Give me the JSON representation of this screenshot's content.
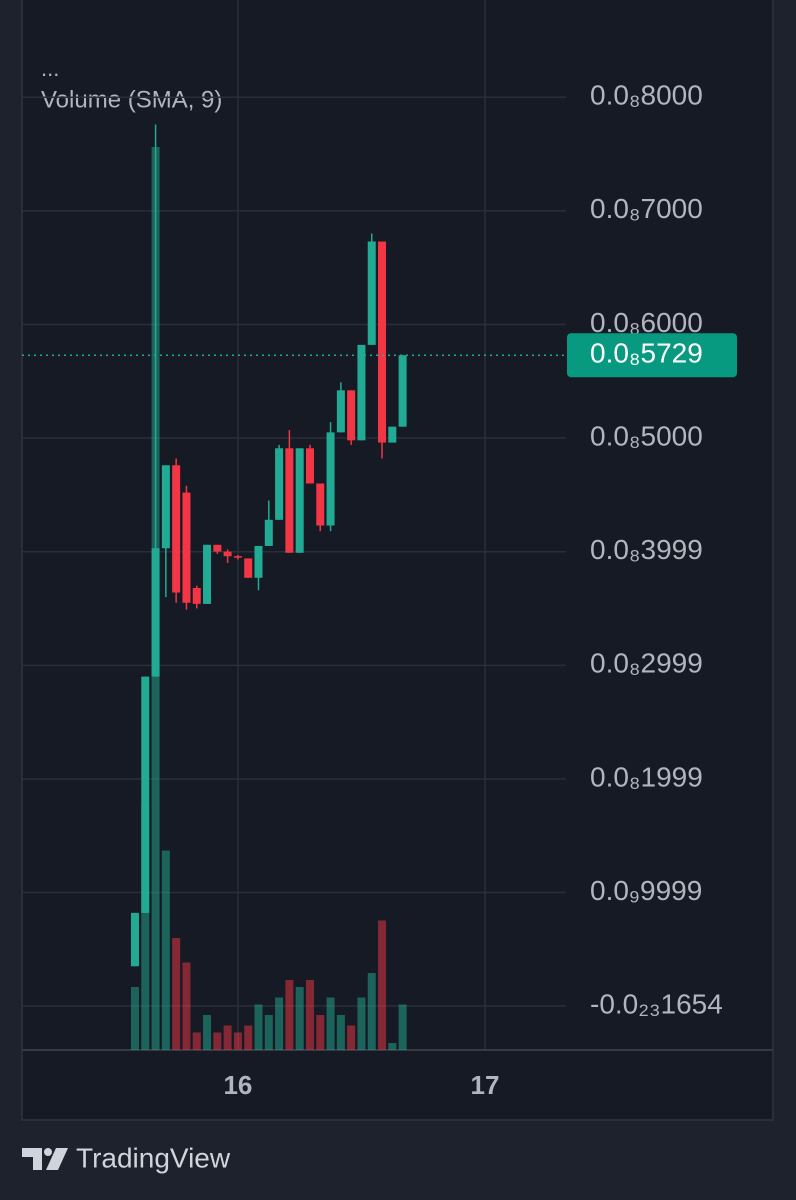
{
  "chart_data": {
    "type": "candlestick",
    "menu": "...",
    "indicator_label": "Volume (SMA, 9)",
    "brand": "TradingView",
    "up_color": "#22ab94",
    "down_color": "#f23645",
    "grid": true,
    "x": [
      15.5833,
      15.625,
      15.6667,
      15.7083,
      15.75,
      15.7917,
      15.8333,
      15.875,
      15.9167,
      15.9583,
      16,
      16.0417,
      16.0833,
      16.125,
      16.1667,
      16.2083,
      16.25,
      16.2917,
      16.3333,
      16.375,
      16.4167,
      16.4583,
      16.5,
      16.5417,
      16.5833,
      16.625,
      16.6667
    ],
    "open": [
      3.5e-10,
      8.2e-10,
      2.9e-09,
      4.03e-09,
      4.76e-09,
      4.52e-09,
      3.68e-09,
      3.54e-09,
      4.06e-09,
      4e-09,
      3.96e-09,
      3.94e-09,
      3.77e-09,
      4.05e-09,
      4.28e-09,
      4.91e-09,
      3.99e-09,
      4.91e-09,
      4.6e-09,
      4.23e-09,
      5.05e-09,
      5.42e-09,
      4.98e-09,
      5.82e-09,
      6.73e-09,
      4.96e-09,
      5.1e-09
    ],
    "high": [
      8.2e-10,
      2.9e-09,
      7.76e-09,
      4.76e-09,
      4.82e-09,
      4.58e-09,
      3.7e-09,
      4.06e-09,
      4.06e-09,
      4.02e-09,
      3.97e-09,
      3.94e-09,
      4.05e-09,
      4.45e-09,
      4.94e-09,
      5.07e-09,
      4.91e-09,
      4.94e-09,
      4.6e-09,
      5.14e-09,
      5.49e-09,
      5.42e-09,
      5.82e-09,
      6.8e-09,
      6.73e-09,
      5.1e-09,
      5.73e-09
    ],
    "low": [
      3.5e-10,
      8.2e-10,
      2.9e-09,
      3.6e-09,
      3.55e-09,
      3.49e-09,
      3.5e-09,
      3.54e-09,
      3.98e-09,
      3.9e-09,
      3.93e-09,
      3.77e-09,
      3.66e-09,
      4.05e-09,
      4.28e-09,
      3.99e-09,
      3.99e-09,
      4.6e-09,
      4.18e-09,
      4.18e-09,
      5.05e-09,
      4.94e-09,
      4.98e-09,
      5.82e-09,
      4.82e-09,
      4.96e-09,
      5.1e-09
    ],
    "close": [
      8.2e-10,
      2.9e-09,
      4.03e-09,
      4.76e-09,
      3.64e-09,
      3.55e-09,
      3.54e-09,
      4.06e-09,
      4e-09,
      3.96e-09,
      3.95e-09,
      3.77e-09,
      4.05e-09,
      4.28e-09,
      4.91e-09,
      3.99e-09,
      4.91e-09,
      4.6e-09,
      4.23e-09,
      5.05e-09,
      5.42e-09,
      4.98e-09,
      5.82e-09,
      6.73e-09,
      4.96e-09,
      5.1e-09,
      5.729e-09
    ],
    "volume": [
      18,
      70,
      258,
      57,
      32,
      25,
      5,
      10,
      5,
      7,
      5,
      7,
      13,
      10,
      15,
      20,
      18,
      20,
      10,
      15,
      10,
      7,
      15,
      22,
      37,
      2,
      13
    ],
    "volume_ylim": [
      0,
      300
    ],
    "xlim": [
      15.126,
      17.328
    ],
    "xticks": [
      16,
      17
    ],
    "ylim": [
      -3.87e-10,
      8.856e-09
    ],
    "yticks": [
      {
        "value": -1.654e-24,
        "label": "-0.0₂₃1654"
      },
      {
        "value": 9.999e-10,
        "label": "0.0₉9999"
      },
      {
        "value": 1.999e-09,
        "label": "0.0₈1999"
      },
      {
        "value": 2.999e-09,
        "label": "0.0₈2999"
      },
      {
        "value": 3.999e-09,
        "label": "0.0₈3999"
      },
      {
        "value": 5e-09,
        "label": "0.0₈5000"
      },
      {
        "value": 6e-09,
        "label": "0.0₈6000"
      },
      {
        "value": 7e-09,
        "label": "0.0₈7000"
      },
      {
        "value": 8e-09,
        "label": "0.0₈8000"
      }
    ],
    "last_price": {
      "value": 5.729e-09,
      "label": "0.0₈5729"
    }
  }
}
